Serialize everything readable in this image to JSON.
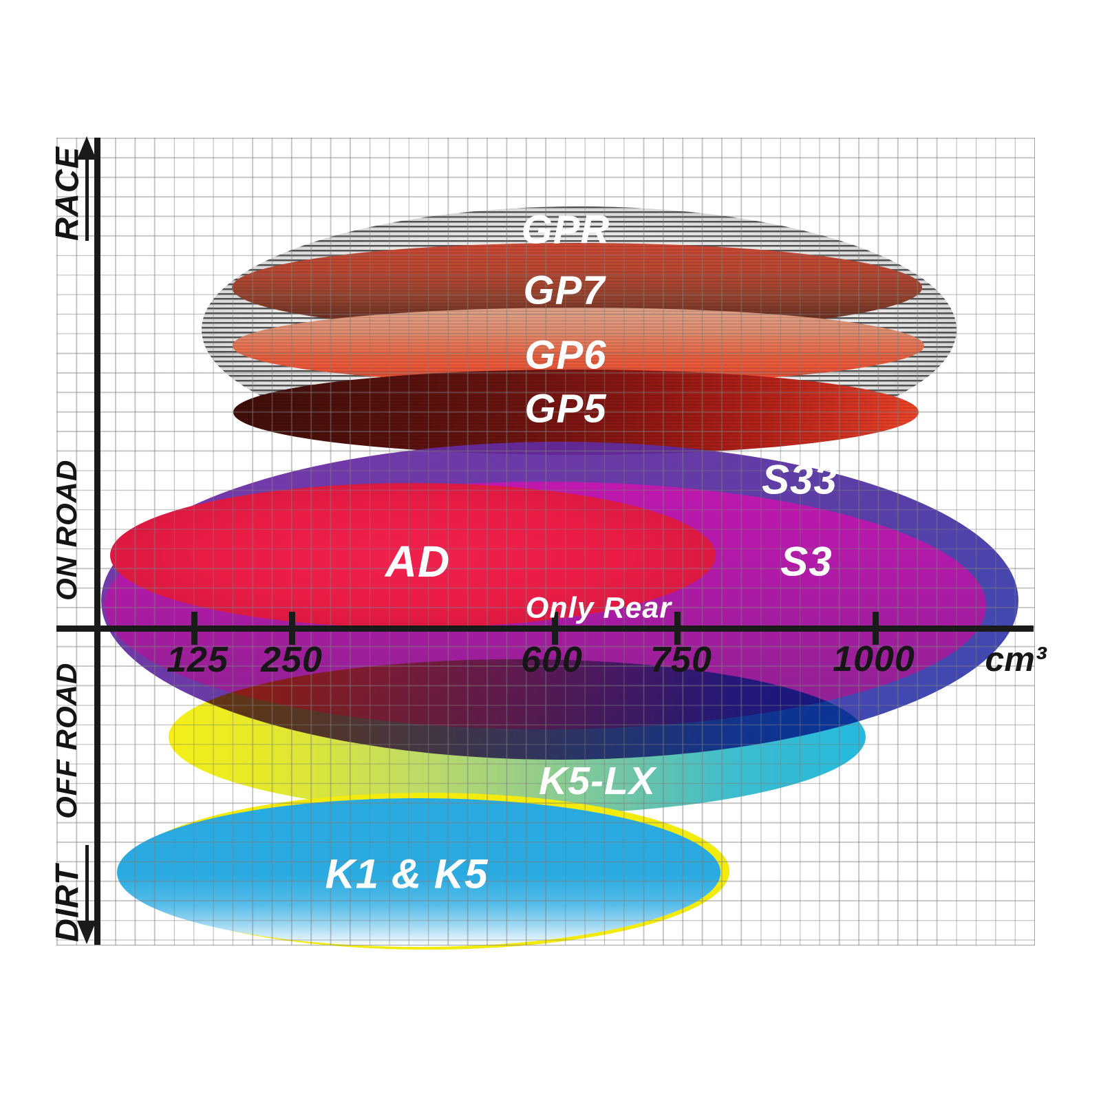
{
  "y_axis": {
    "categories": [
      "RACE",
      "ON ROAD",
      "OFF ROAD",
      "DIRT"
    ]
  },
  "x_axis": {
    "ticks": [
      "125",
      "250",
      "600",
      "750",
      "1000"
    ],
    "unit": "cm³"
  },
  "labels": {
    "gpr": "GPR",
    "gp7": "GP7",
    "gp6": "GP6",
    "gp5": "GP5",
    "s33": "S33",
    "s3": "S3",
    "ad": "AD",
    "only_rear": "Only Rear",
    "k5lx": "K5-LX",
    "k1k5": "K1 & K5"
  },
  "colors": {
    "axis": "#1a1a1a",
    "grid": "#c9c9c9",
    "gpr_hatch": "#8a8a8a",
    "gp7": "#a84532",
    "gp6": "#e5502f",
    "gp5": "#8f1712",
    "s33": "#5b2b9e",
    "s33_blue_end": "#2c3ead",
    "s3": "#a81d9f",
    "ad": "#e91c46",
    "k5lx_left": "#f6ee0a",
    "k5lx_right": "#18b5dc",
    "k1k5": "#29abe2",
    "k1k5_outline": "#f3eb0b",
    "label_text": "#ffffff"
  },
  "chart_data": {
    "type": "area",
    "title": "Brake pad compound application ranges",
    "xlabel": "cm³",
    "x_ticks": [
      125,
      250,
      600,
      750,
      1000
    ],
    "x_range_cm3": [
      0,
      1250
    ],
    "y_categories_top_to_bottom": [
      "RACE",
      "ON ROAD",
      "OFF ROAD",
      "DIRT"
    ],
    "grid": true,
    "legend_position": "labels-inside-regions",
    "regions": [
      {
        "name": "GPR",
        "displacement_cm3": [
          130,
          1100
        ],
        "usage": [
          "RACE"
        ],
        "style": "grey hatched ellipse"
      },
      {
        "name": "GP7",
        "displacement_cm3": [
          170,
          1060
        ],
        "usage": [
          "RACE"
        ],
        "style": "red to dark-brown ellipse"
      },
      {
        "name": "GP6",
        "displacement_cm3": [
          170,
          1060
        ],
        "usage": [
          "RACE"
        ],
        "style": "salmon to orange-red ellipse"
      },
      {
        "name": "GP5",
        "displacement_cm3": [
          175,
          1050
        ],
        "usage": [
          "RACE"
        ],
        "style": "dark-maroon to bright-red ellipse"
      },
      {
        "name": "S33",
        "displacement_cm3": [
          0,
          1180
        ],
        "usage": [
          "ON ROAD",
          "OFF ROAD"
        ],
        "style": "indigo to blue ellipse"
      },
      {
        "name": "S3",
        "displacement_cm3": [
          10,
          1140
        ],
        "usage": [
          "ON ROAD",
          "OFF ROAD"
        ],
        "style": "magenta ellipse"
      },
      {
        "name": "AD",
        "displacement_cm3": [
          15,
          790
        ],
        "usage": [
          "ON ROAD"
        ],
        "note": "Only Rear",
        "style": "crimson ellipse"
      },
      {
        "name": "K5-LX",
        "displacement_cm3": [
          90,
          980
        ],
        "usage": [
          "OFF ROAD"
        ],
        "style": "yellow to teal gradient ellipse"
      },
      {
        "name": "K1 & K5",
        "displacement_cm3": [
          25,
          800
        ],
        "usage": [
          "DIRT"
        ],
        "style": "cyan ellipse with yellow outline, fading to white at bottom"
      }
    ]
  }
}
